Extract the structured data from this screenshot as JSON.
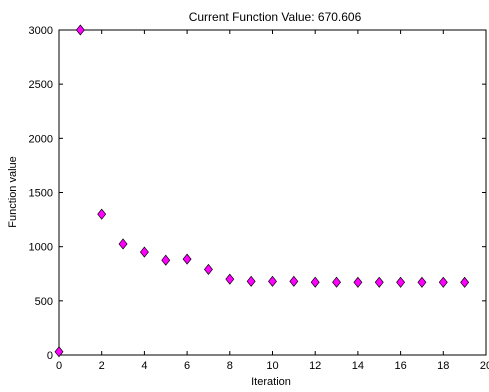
{
  "chart_data": {
    "type": "scatter",
    "title": "Current Function Value: 670.606",
    "xlabel": "Iteration",
    "ylabel": "Function value",
    "xlim": [
      0,
      20
    ],
    "ylim": [
      0,
      3000
    ],
    "xticks": [
      0,
      2,
      4,
      6,
      8,
      10,
      12,
      14,
      16,
      18,
      20
    ],
    "yticks": [
      0,
      500,
      1000,
      1500,
      2000,
      2500,
      3000
    ],
    "grid": false,
    "marker": "diamond",
    "marker_color": "#ff00ff",
    "marker_edge_color": "#000000",
    "series": [
      {
        "x": [
          0,
          1,
          2,
          3,
          4,
          5,
          6,
          7,
          8,
          9,
          10,
          11,
          12,
          13,
          14,
          15,
          16,
          17,
          18,
          19
        ],
        "y": [
          30,
          3000,
          1300,
          1025,
          950,
          875,
          885,
          790,
          700,
          680,
          680,
          680,
          672,
          672,
          671,
          671,
          671,
          671,
          671,
          670.606
        ]
      }
    ]
  }
}
